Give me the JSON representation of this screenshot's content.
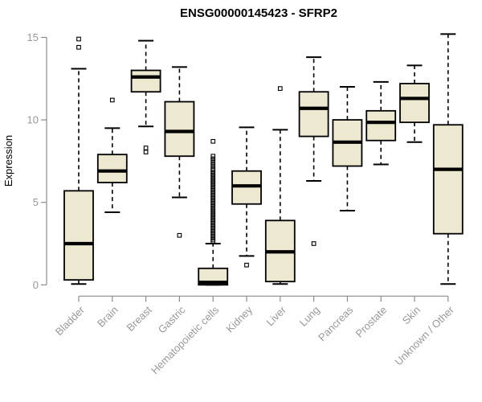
{
  "chart_data": {
    "type": "boxplot",
    "title": "ENSG00000145423 - SFRP2",
    "ylabel": "Expression",
    "xlabel": "",
    "ylim": [
      0,
      15.3
    ],
    "yticks": [
      0,
      5,
      10,
      15
    ],
    "grid": false,
    "legend": false,
    "categories": [
      "Bladder",
      "Brain",
      "Breast",
      "Gastric",
      "Hematopoietic cells",
      "Kidney",
      "Liver",
      "Lung",
      "Pancreas",
      "Prostate",
      "Skin",
      "Unknown / Other"
    ],
    "boxes": [
      {
        "category": "Bladder",
        "low": 0.05,
        "q1": 0.3,
        "median": 2.5,
        "q3": 5.7,
        "high": 13.1,
        "outliers": [
          14.9,
          14.4
        ]
      },
      {
        "category": "Brain",
        "low": 4.4,
        "q1": 6.2,
        "median": 6.9,
        "q3": 7.9,
        "high": 9.5,
        "outliers": [
          11.2
        ]
      },
      {
        "category": "Breast",
        "low": 9.6,
        "q1": 11.7,
        "median": 12.6,
        "q3": 13.0,
        "high": 14.8,
        "outliers": [
          8.3,
          8.05
        ]
      },
      {
        "category": "Gastric",
        "low": 5.3,
        "q1": 7.8,
        "median": 9.3,
        "q3": 11.1,
        "high": 13.2,
        "outliers": [
          3.0
        ]
      },
      {
        "category": "Hematopoietic cells",
        "low": 0.0,
        "q1": 0.0,
        "median": 0.15,
        "q3": 1.0,
        "high": 2.5,
        "outliers": [
          8.7,
          7.8,
          7.65,
          7.5,
          7.35,
          7.2,
          7.05,
          6.95,
          6.85,
          6.75,
          6.65,
          6.55,
          6.45,
          6.35,
          6.25,
          6.15,
          6.05,
          5.95,
          5.85,
          5.75,
          5.65,
          5.55,
          5.45,
          5.35,
          5.25,
          5.15,
          5.05,
          4.95,
          4.85,
          4.75,
          4.65,
          4.55,
          4.45,
          4.35,
          4.25,
          4.15,
          4.05,
          3.95,
          3.85,
          3.75,
          3.65,
          3.55,
          3.45,
          3.35,
          3.25,
          3.15,
          3.05,
          2.95,
          2.85,
          2.75,
          2.65
        ]
      },
      {
        "category": "Kidney",
        "low": 1.75,
        "q1": 4.9,
        "median": 6.0,
        "q3": 6.9,
        "high": 9.55,
        "outliers": [
          1.2
        ]
      },
      {
        "category": "Liver",
        "low": 0.05,
        "q1": 0.2,
        "median": 2.0,
        "q3": 3.9,
        "high": 9.4,
        "outliers": [
          11.9
        ]
      },
      {
        "category": "Lung",
        "low": 6.3,
        "q1": 9.0,
        "median": 10.7,
        "q3": 11.7,
        "high": 13.8,
        "outliers": [
          2.5
        ]
      },
      {
        "category": "Pancreas",
        "low": 4.5,
        "q1": 7.2,
        "median": 8.65,
        "q3": 10.0,
        "high": 12.0,
        "outliers": []
      },
      {
        "category": "Prostate",
        "low": 7.3,
        "q1": 8.75,
        "median": 9.85,
        "q3": 10.55,
        "high": 12.3,
        "outliers": []
      },
      {
        "category": "Skin",
        "low": 8.65,
        "q1": 9.85,
        "median": 11.3,
        "q3": 12.2,
        "high": 13.3,
        "outliers": []
      },
      {
        "category": "Unknown / Other",
        "low": 0.05,
        "q1": 3.1,
        "median": 7.0,
        "q3": 9.7,
        "high": 15.2,
        "outliers": []
      }
    ],
    "colors": {
      "box_fill": "#EDE8D0",
      "box_border": "#000000",
      "median": "#000000",
      "whisker": "#000000",
      "outlier": "#000000",
      "axis": "#8C8C8C",
      "tick_label": "#999999",
      "title": "#000000",
      "background": "#FFFFFF"
    }
  }
}
